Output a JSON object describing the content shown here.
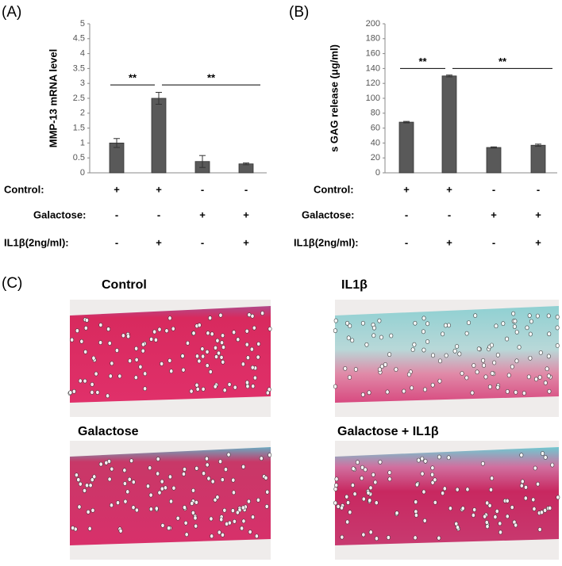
{
  "panels": [
    "(A)",
    "(B)",
    "(C)"
  ],
  "chart_data": [
    {
      "type": "bar",
      "ylabel": "MMP-13 mRNA level",
      "categories": [
        null,
        null,
        null,
        null
      ],
      "values": [
        1.0,
        2.5,
        0.38,
        0.3
      ],
      "errors": [
        0.15,
        0.2,
        0.2,
        0.03
      ],
      "color": "#595959",
      "ylim": [
        0,
        5
      ],
      "yticks": [
        0,
        0.5,
        1,
        1.5,
        2,
        2.5,
        3,
        3.5,
        4,
        4.5,
        5
      ],
      "annotations": [
        {
          "text": "**",
          "from": 0,
          "to": 1,
          "y": 2.95
        },
        {
          "text": "**",
          "from": 1,
          "to": 3,
          "y": 2.95
        }
      ],
      "conditions": [
        {
          "label": "Control:",
          "signs": [
            "+",
            "+",
            "-",
            "-"
          ]
        },
        {
          "label": "Galactose:",
          "signs": [
            "-",
            "-",
            "+",
            "+"
          ]
        },
        {
          "label": "IL1β(2ng/ml):",
          "signs": [
            "-",
            "+",
            "-",
            "+"
          ]
        }
      ]
    },
    {
      "type": "bar",
      "ylabel": "s GAG release (μg/ml)",
      "categories": [
        null,
        null,
        null,
        null
      ],
      "values": [
        68,
        130,
        34,
        37
      ],
      "errors": [
        1,
        1.2,
        0.8,
        1.5
      ],
      "color": "#595959",
      "ylim": [
        0,
        200
      ],
      "yticks": [
        0,
        20,
        40,
        60,
        80,
        100,
        120,
        140,
        160,
        180,
        200
      ],
      "annotations": [
        {
          "text": "**",
          "from": 0,
          "to": 1,
          "y": 140
        },
        {
          "text": "**",
          "from": 1,
          "to": 3,
          "y": 140
        }
      ],
      "conditions": [
        {
          "label": "Control:",
          "signs": [
            "+",
            "+",
            "-",
            "-"
          ]
        },
        {
          "label": "Galactose:",
          "signs": [
            "-",
            "-",
            "+",
            "+"
          ]
        },
        {
          "label": "IL1β(2ng/ml):",
          "signs": [
            "-",
            "+",
            "-",
            "+"
          ]
        }
      ]
    }
  ],
  "histology": [
    "Control",
    "IL1β",
    "Galactose",
    "Galactose + IL1β"
  ]
}
